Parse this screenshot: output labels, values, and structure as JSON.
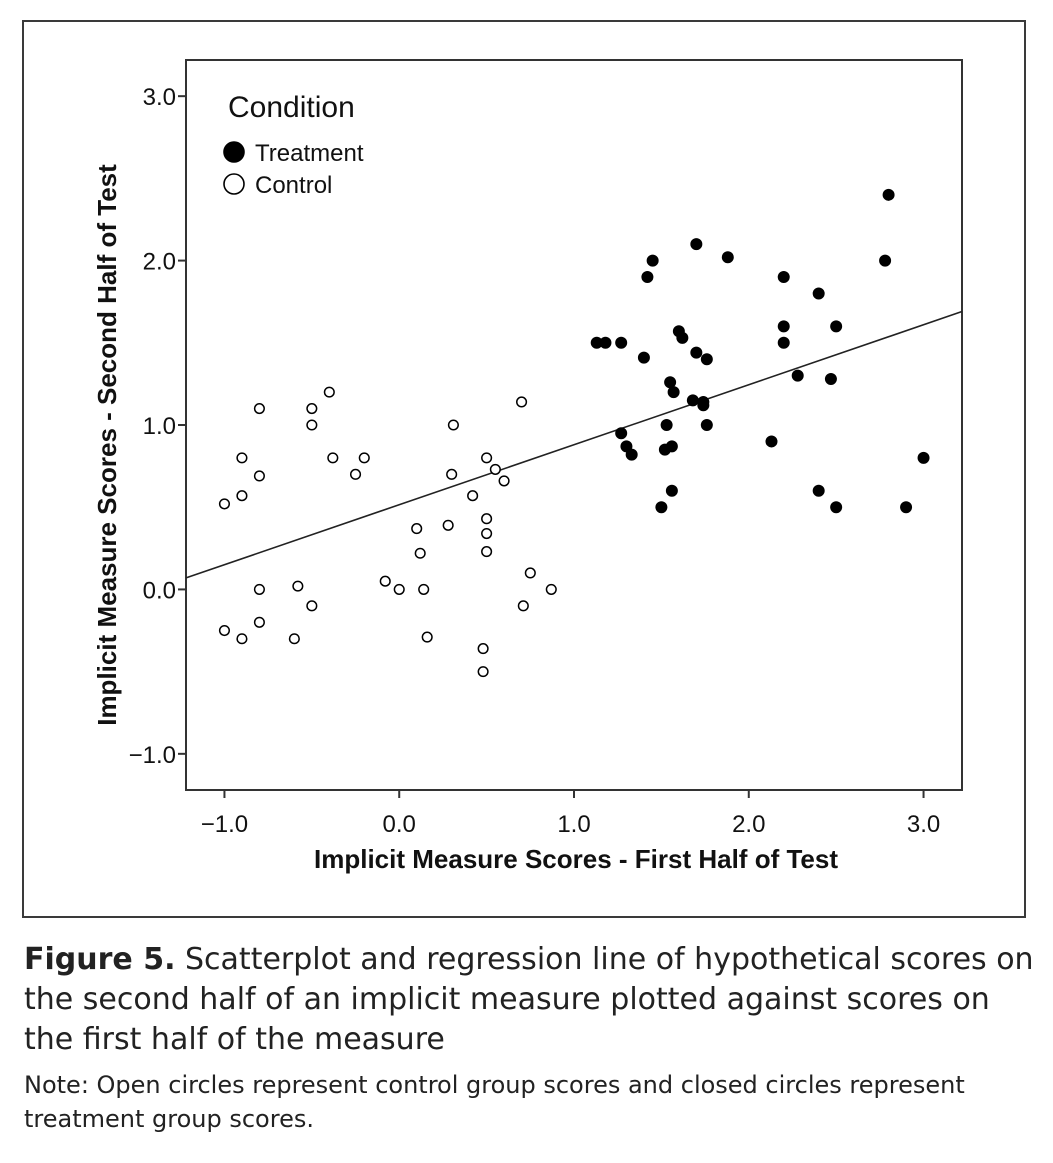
{
  "figure": {
    "label": "Figure 5.",
    "caption": " Scatterplot and regression line of hypothetical scores on the second half of an implicit measure plotted against scores on the first half of the measure",
    "note": "Note: Open circles represent control group scores and closed circles represent treatment group scores."
  },
  "chart_data": {
    "type": "scatter",
    "xlabel": "Implicit Measure Scores - First Half of Test",
    "ylabel": "Implicit Measure Scores - Second Half of Test",
    "xlim": [
      -1.22,
      3.22
    ],
    "ylim": [
      -1.22,
      3.22
    ],
    "xticks": [
      -1.0,
      0.0,
      1.0,
      2.0,
      3.0
    ],
    "yticks": [
      -1.0,
      0.0,
      1.0,
      2.0,
      3.0
    ],
    "xtick_labels": [
      "−1.0",
      "0.0",
      "1.0",
      "2.0",
      "3.0"
    ],
    "ytick_labels": [
      "−1.0",
      "0.0",
      "1.0",
      "2.0",
      "3.0"
    ],
    "grid": false,
    "legend": {
      "title": "Condition",
      "position": "top-left"
    },
    "series": [
      {
        "name": "Treatment",
        "marker": "filled-circle",
        "color": "#000000",
        "points": [
          [
            2.8,
            2.4
          ],
          [
            1.7,
            2.1
          ],
          [
            1.45,
            2.0
          ],
          [
            1.88,
            2.02
          ],
          [
            2.78,
            2.0
          ],
          [
            1.42,
            1.9
          ],
          [
            2.2,
            1.9
          ],
          [
            2.4,
            1.8
          ],
          [
            1.13,
            1.5
          ],
          [
            1.18,
            1.5
          ],
          [
            1.27,
            1.5
          ],
          [
            1.6,
            1.57
          ],
          [
            1.62,
            1.53
          ],
          [
            2.2,
            1.6
          ],
          [
            2.5,
            1.6
          ],
          [
            2.2,
            1.5
          ],
          [
            1.4,
            1.41
          ],
          [
            1.7,
            1.44
          ],
          [
            1.76,
            1.4
          ],
          [
            2.28,
            1.3
          ],
          [
            2.47,
            1.28
          ],
          [
            1.55,
            1.26
          ],
          [
            1.57,
            1.2
          ],
          [
            1.68,
            1.15
          ],
          [
            1.74,
            1.14
          ],
          [
            1.74,
            1.12
          ],
          [
            1.53,
            1.0
          ],
          [
            1.76,
            1.0
          ],
          [
            1.27,
            0.95
          ],
          [
            2.13,
            0.9
          ],
          [
            1.3,
            0.87
          ],
          [
            1.33,
            0.82
          ],
          [
            1.52,
            0.85
          ],
          [
            1.56,
            0.87
          ],
          [
            3.0,
            0.8
          ],
          [
            1.56,
            0.6
          ],
          [
            2.4,
            0.6
          ],
          [
            1.5,
            0.5
          ],
          [
            2.5,
            0.5
          ],
          [
            2.9,
            0.5
          ]
        ]
      },
      {
        "name": "Control",
        "marker": "open-circle",
        "color": "#000000",
        "points": [
          [
            -0.4,
            1.2
          ],
          [
            -0.8,
            1.1
          ],
          [
            -0.5,
            1.1
          ],
          [
            0.7,
            1.14
          ],
          [
            -0.5,
            1.0
          ],
          [
            0.31,
            1.0
          ],
          [
            -0.9,
            0.8
          ],
          [
            -0.38,
            0.8
          ],
          [
            -0.2,
            0.8
          ],
          [
            0.5,
            0.8
          ],
          [
            -0.8,
            0.69
          ],
          [
            -0.25,
            0.7
          ],
          [
            0.3,
            0.7
          ],
          [
            0.55,
            0.73
          ],
          [
            0.6,
            0.66
          ],
          [
            -0.9,
            0.57
          ],
          [
            0.42,
            0.57
          ],
          [
            -1.0,
            0.52
          ],
          [
            0.5,
            0.43
          ],
          [
            0.28,
            0.39
          ],
          [
            0.1,
            0.37
          ],
          [
            0.5,
            0.34
          ],
          [
            0.12,
            0.22
          ],
          [
            0.5,
            0.23
          ],
          [
            0.75,
            0.1
          ],
          [
            -0.08,
            0.05
          ],
          [
            0.0,
            0.0
          ],
          [
            0.14,
            0.0
          ],
          [
            -0.8,
            0.0
          ],
          [
            -0.58,
            0.02
          ],
          [
            0.87,
            0.0
          ],
          [
            -0.5,
            -0.1
          ],
          [
            0.71,
            -0.1
          ],
          [
            -0.8,
            -0.2
          ],
          [
            -1.0,
            -0.25
          ],
          [
            -0.9,
            -0.3
          ],
          [
            -0.6,
            -0.3
          ],
          [
            0.16,
            -0.29
          ],
          [
            0.48,
            -0.36
          ],
          [
            0.48,
            -0.5
          ]
        ]
      }
    ],
    "regression_line": {
      "x": [
        -1.22,
        3.22
      ],
      "y": [
        0.07,
        1.69
      ]
    }
  }
}
